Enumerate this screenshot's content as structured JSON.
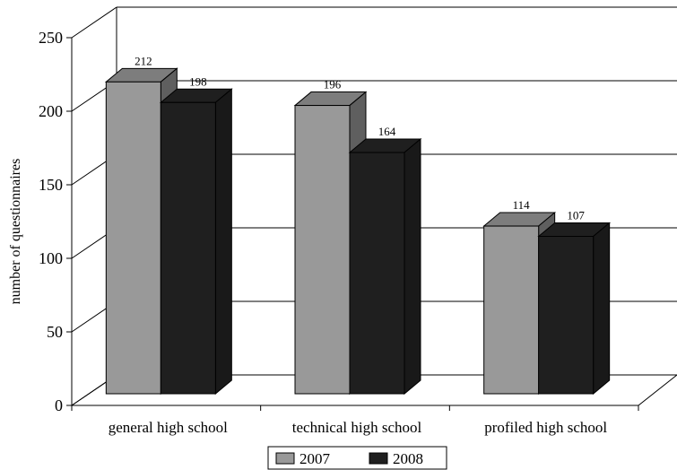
{
  "chart_data": {
    "type": "bar",
    "categories": [
      "general high school",
      "technical high school",
      "profiled high school"
    ],
    "series": [
      {
        "name": "2007",
        "values": [
          212,
          196,
          114
        ],
        "color": "#999999"
      },
      {
        "name": "2008",
        "values": [
          198,
          164,
          107
        ],
        "color": "#1f1f1f"
      }
    ],
    "ylabel": "number of questionnaires",
    "ylim": [
      0,
      250
    ],
    "yticks": [
      0,
      50,
      100,
      150,
      200,
      250
    ],
    "grid": true,
    "legend": "bottom"
  }
}
